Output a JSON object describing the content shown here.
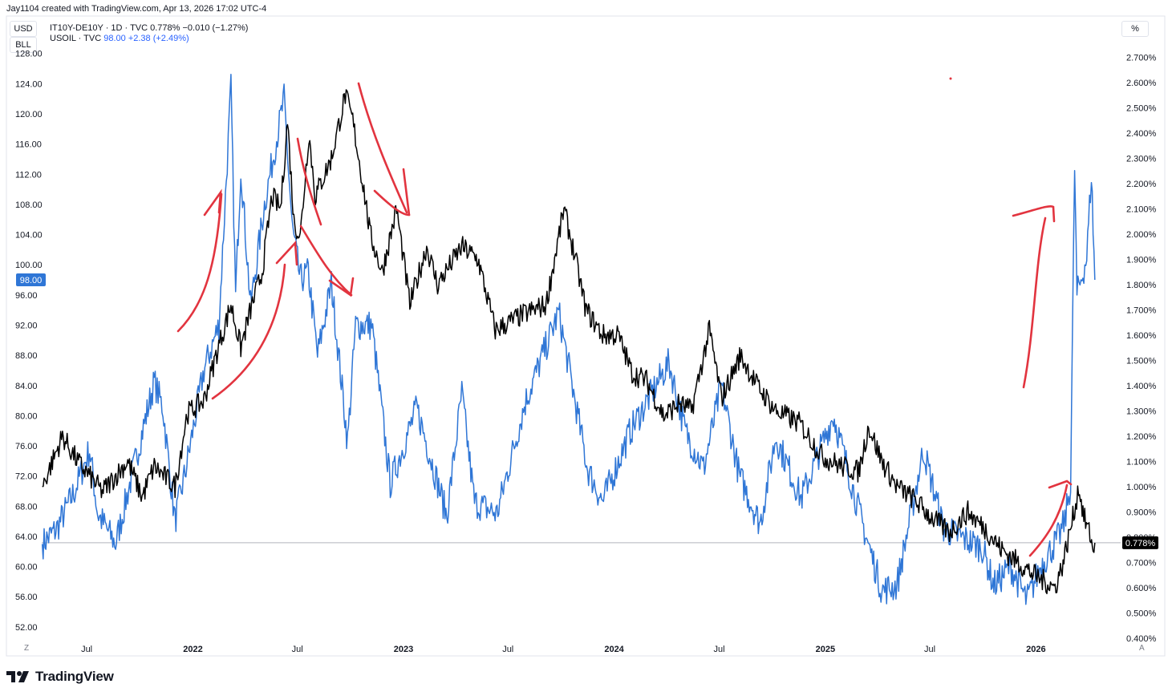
{
  "header": {
    "credit": "Jay1104 created with TradingView.com, Apr 13, 2026 17:02 UTC-4",
    "btn_usd": "USD",
    "btn_bll": "BLL",
    "btn_pct": "%",
    "corner_left": "Z",
    "corner_right": "A"
  },
  "legend": {
    "line1": "IT10Y-DE10Y · 1D · TVC  0.778%  −0.010 (−1.27%)",
    "line2_name": "USOIL · TVC",
    "line2_vals": "98.00  +2.38 (+2.49%)"
  },
  "brand": {
    "text": "TradingView"
  },
  "colors": {
    "oil": "#2f76d6",
    "spread": "#000000",
    "annotation": "#e2343f",
    "last_oil_bg": "#2f76d6",
    "last_spread_bg": "#000000"
  },
  "chart_data": {
    "type": "line",
    "x_ticks": [
      "Jul",
      "2022",
      "Jul",
      "2023",
      "Jul",
      "2024",
      "Jul",
      "2025",
      "Jul",
      "2026"
    ],
    "left_axis": {
      "ticks": [
        "128.00",
        "124.00",
        "120.00",
        "116.00",
        "112.00",
        "108.00",
        "104.00",
        "100.00",
        "96.00",
        "92.00",
        "88.00",
        "84.00",
        "80.00",
        "76.00",
        "72.00",
        "68.00",
        "64.00",
        "60.00",
        "56.00",
        "52.00"
      ],
      "range": [
        50.5,
        128.5
      ]
    },
    "right_axis": {
      "ticks": [
        "2.700%",
        "2.600%",
        "2.500%",
        "2.400%",
        "2.300%",
        "2.200%",
        "2.100%",
        "2.000%",
        "1.900%",
        "1.800%",
        "1.700%",
        "1.600%",
        "1.500%",
        "1.400%",
        "1.300%",
        "1.200%",
        "1.100%",
        "1.000%",
        "0.900%",
        "0.800%",
        "0.700%",
        "0.600%",
        "0.500%",
        "0.400%"
      ],
      "range": [
        0.4,
        2.73
      ]
    },
    "x_range": [
      "2021-04-14",
      "2026-05-25"
    ],
    "last_values": {
      "oil": "98.00",
      "spread": "0.778%"
    },
    "reference_line": 0.778,
    "series": [
      {
        "name": "USOIL · TVC",
        "axis": "left",
        "points": [
          [
            "2021-04-15",
            63
          ],
          [
            "2021-05-10",
            65
          ],
          [
            "2021-06-10",
            70
          ],
          [
            "2021-07-06",
            75.5
          ],
          [
            "2021-07-20",
            67
          ],
          [
            "2021-08-20",
            63
          ],
          [
            "2021-09-28",
            75.5
          ],
          [
            "2021-10-26",
            84.5
          ],
          [
            "2021-11-10",
            81
          ],
          [
            "2021-12-01",
            66
          ],
          [
            "2021-12-20",
            73
          ],
          [
            "2022-01-20",
            86
          ],
          [
            "2022-02-15",
            92
          ],
          [
            "2022-03-08",
            123.5
          ],
          [
            "2022-03-16",
            96
          ],
          [
            "2022-03-25",
            113
          ],
          [
            "2022-04-11",
            94.5
          ],
          [
            "2022-05-05",
            108
          ],
          [
            "2022-06-08",
            122
          ],
          [
            "2022-06-22",
            105
          ],
          [
            "2022-07-06",
            98
          ],
          [
            "2022-07-20",
            99
          ],
          [
            "2022-08-05",
            88
          ],
          [
            "2022-08-29",
            97.5
          ],
          [
            "2022-09-26",
            76.5
          ],
          [
            "2022-10-10",
            92
          ],
          [
            "2022-11-07",
            92
          ],
          [
            "2022-12-09",
            71
          ],
          [
            "2023-01-24",
            81
          ],
          [
            "2023-03-17",
            66.7
          ],
          [
            "2023-04-12",
            83
          ],
          [
            "2023-05-04",
            68.5
          ],
          [
            "2023-06-12",
            67
          ],
          [
            "2023-07-31",
            81.8
          ],
          [
            "2023-09-27",
            93.7
          ],
          [
            "2023-11-16",
            72.9
          ],
          [
            "2023-12-12",
            68.6
          ],
          [
            "2024-01-29",
            78
          ],
          [
            "2024-04-05",
            87
          ],
          [
            "2024-05-03",
            78
          ],
          [
            "2024-06-04",
            73
          ],
          [
            "2024-07-05",
            84
          ],
          [
            "2024-08-05",
            72
          ],
          [
            "2024-09-10",
            65.7
          ],
          [
            "2024-10-07",
            77.2
          ],
          [
            "2024-11-20",
            69
          ],
          [
            "2025-01-15",
            80
          ],
          [
            "2025-03-05",
            66
          ],
          [
            "2025-04-09",
            56.8
          ],
          [
            "2025-05-05",
            57.5
          ],
          [
            "2025-06-20",
            75.5
          ],
          [
            "2025-07-25",
            65
          ],
          [
            "2025-09-30",
            62.5
          ],
          [
            "2025-10-20",
            57.5
          ],
          [
            "2025-11-18",
            60
          ],
          [
            "2025-12-16",
            55.5
          ],
          [
            "2026-01-09",
            60
          ],
          [
            "2026-02-10",
            64
          ],
          [
            "2026-02-20",
            66
          ],
          [
            "2026-03-02",
            71
          ],
          [
            "2026-03-09",
            113
          ],
          [
            "2026-03-13",
            96
          ],
          [
            "2026-03-20",
            98
          ],
          [
            "2026-03-30",
            101
          ],
          [
            "2026-04-07",
            112
          ],
          [
            "2026-04-13",
            98
          ]
        ]
      },
      {
        "name": "IT10Y-DE10Y · 1D · TVC",
        "axis": "right",
        "points": [
          [
            "2021-04-15",
            1.0
          ],
          [
            "2021-05-20",
            1.2
          ],
          [
            "2021-06-15",
            1.1
          ],
          [
            "2021-07-28",
            0.98
          ],
          [
            "2021-09-10",
            1.1
          ],
          [
            "2021-10-05",
            0.96
          ],
          [
            "2021-10-26",
            1.08
          ],
          [
            "2021-12-01",
            1.0
          ],
          [
            "2021-12-22",
            1.29
          ],
          [
            "2022-01-20",
            1.34
          ],
          [
            "2022-02-10",
            1.52
          ],
          [
            "2022-03-08",
            1.72
          ],
          [
            "2022-03-25",
            1.55
          ],
          [
            "2022-04-11",
            1.7
          ],
          [
            "2022-05-01",
            1.85
          ],
          [
            "2022-05-18",
            2.15
          ],
          [
            "2022-06-02",
            2.1
          ],
          [
            "2022-06-14",
            2.45
          ],
          [
            "2022-06-25",
            2.05
          ],
          [
            "2022-07-06",
            1.99
          ],
          [
            "2022-07-21",
            2.4
          ],
          [
            "2022-08-01",
            2.15
          ],
          [
            "2022-08-29",
            2.3
          ],
          [
            "2022-09-22",
            2.55
          ],
          [
            "2022-10-05",
            2.45
          ],
          [
            "2022-10-26",
            2.15
          ],
          [
            "2022-11-04",
            2.0
          ],
          [
            "2022-11-25",
            1.85
          ],
          [
            "2022-12-20",
            2.1
          ],
          [
            "2023-01-12",
            1.72
          ],
          [
            "2023-02-10",
            1.95
          ],
          [
            "2023-03-01",
            1.8
          ],
          [
            "2023-04-12",
            1.95
          ],
          [
            "2023-05-10",
            1.9
          ],
          [
            "2023-06-09",
            1.62
          ],
          [
            "2023-07-26",
            1.68
          ],
          [
            "2023-09-05",
            1.72
          ],
          [
            "2023-10-06",
            2.1
          ],
          [
            "2023-10-26",
            1.9
          ],
          [
            "2023-11-13",
            1.7
          ],
          [
            "2023-12-12",
            1.6
          ],
          [
            "2024-01-08",
            1.6
          ],
          [
            "2024-02-01",
            1.45
          ],
          [
            "2024-02-26",
            1.42
          ],
          [
            "2024-03-27",
            1.28
          ],
          [
            "2024-04-23",
            1.33
          ],
          [
            "2024-05-14",
            1.3
          ],
          [
            "2024-06-14",
            1.62
          ],
          [
            "2024-07-05",
            1.35
          ],
          [
            "2024-08-07",
            1.52
          ],
          [
            "2024-09-05",
            1.4
          ],
          [
            "2024-10-07",
            1.3
          ],
          [
            "2024-11-18",
            1.25
          ],
          [
            "2024-12-27",
            1.12
          ],
          [
            "2025-01-30",
            1.08
          ],
          [
            "2025-02-28",
            1.06
          ],
          [
            "2025-03-17",
            1.24
          ],
          [
            "2025-04-09",
            1.1
          ],
          [
            "2025-05-05",
            1.0
          ],
          [
            "2025-06-04",
            0.95
          ],
          [
            "2025-07-03",
            0.88
          ],
          [
            "2025-08-04",
            0.82
          ],
          [
            "2025-09-05",
            0.9
          ],
          [
            "2025-10-06",
            0.83
          ],
          [
            "2025-11-03",
            0.75
          ],
          [
            "2025-12-01",
            0.7
          ],
          [
            "2025-12-29",
            0.65
          ],
          [
            "2026-02-03",
            0.6
          ],
          [
            "2026-02-17",
            0.7
          ],
          [
            "2026-03-09",
            0.91
          ],
          [
            "2026-03-16",
            1.0
          ],
          [
            "2026-03-25",
            0.88
          ],
          [
            "2026-04-06",
            0.8
          ],
          [
            "2026-04-10",
            0.74
          ],
          [
            "2026-04-13",
            0.778
          ]
        ]
      }
    ],
    "annotations": [
      {
        "type": "freehand",
        "color": "#e2343f",
        "note": "up/down trend arrows drawn over the chart"
      }
    ]
  }
}
